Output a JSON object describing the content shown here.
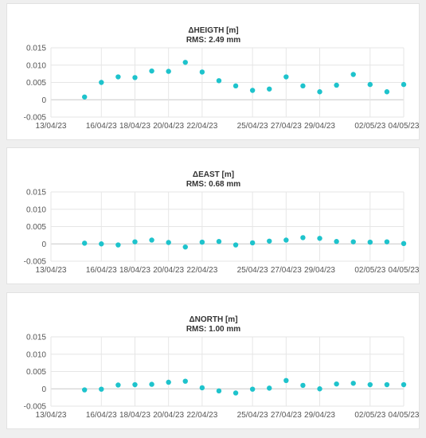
{
  "colors": {
    "point": "#1ec3cc",
    "grid": "#e6e6e6",
    "zero_line": "#c8c8c8",
    "text": "#333333"
  },
  "chart_data": [
    {
      "type": "scatter",
      "title": "ΔHEIGTH [m]",
      "subtitle": "RMS: 2.49 mm",
      "xlabel": "",
      "ylabel": "",
      "ylim": [
        -0.005,
        0.015
      ],
      "y_ticks": [
        "0.015",
        "0.010",
        "0.005",
        "0",
        "-0.005"
      ],
      "x_ticks": [
        "13/04/23",
        "16/04/23",
        "18/04/23",
        "20/04/23",
        "22/04/23",
        "25/04/23",
        "27/04/23",
        "29/04/23",
        "02/05/23",
        "04/05/23"
      ],
      "grid": true,
      "x": [
        "15/04/23",
        "16/04/23",
        "17/04/23",
        "18/04/23",
        "19/04/23",
        "20/04/23",
        "21/04/23",
        "22/04/23",
        "23/04/23",
        "24/04/23",
        "25/04/23",
        "26/04/23",
        "27/04/23",
        "28/04/23",
        "29/04/23",
        "30/04/23",
        "01/05/23",
        "02/05/23",
        "03/05/23",
        "04/05/23"
      ],
      "values": [
        0.0008,
        0.005,
        0.0066,
        0.0064,
        0.0083,
        0.0082,
        0.0108,
        0.008,
        0.0055,
        0.004,
        0.0027,
        0.0031,
        0.0066,
        0.004,
        0.0023,
        0.0042,
        0.0073,
        0.0044,
        0.0023,
        0.0044
      ]
    },
    {
      "type": "scatter",
      "title": "ΔEAST [m]",
      "subtitle": "RMS: 0.68 mm",
      "xlabel": "",
      "ylabel": "",
      "ylim": [
        -0.005,
        0.015
      ],
      "y_ticks": [
        "0.015",
        "0.010",
        "0.005",
        "0",
        "-0.005"
      ],
      "x_ticks": [
        "13/04/23",
        "16/04/23",
        "18/04/23",
        "20/04/23",
        "22/04/23",
        "25/04/23",
        "27/04/23",
        "29/04/23",
        "02/05/23",
        "04/05/23"
      ],
      "grid": true,
      "x": [
        "15/04/23",
        "16/04/23",
        "17/04/23",
        "18/04/23",
        "19/04/23",
        "20/04/23",
        "21/04/23",
        "22/04/23",
        "23/04/23",
        "24/04/23",
        "25/04/23",
        "26/04/23",
        "27/04/23",
        "28/04/23",
        "29/04/23",
        "30/04/23",
        "01/05/23",
        "02/05/23",
        "03/05/23",
        "04/05/23"
      ],
      "values": [
        0.0002,
        0.0,
        -0.0003,
        0.0006,
        0.0011,
        0.0004,
        -0.0009,
        0.0005,
        0.0007,
        -0.0003,
        0.0003,
        0.0008,
        0.0011,
        0.0018,
        0.0016,
        0.0007,
        0.0006,
        0.0005,
        0.0006,
        0.0001
      ]
    },
    {
      "type": "scatter",
      "title": "ΔNORTH [m]",
      "subtitle": "RMS: 1.00 mm",
      "xlabel": "",
      "ylabel": "",
      "ylim": [
        -0.005,
        0.015
      ],
      "y_ticks": [
        "0.015",
        "0.010",
        "0.005",
        "0",
        "-0.005"
      ],
      "x_ticks": [
        "13/04/23",
        "16/04/23",
        "18/04/23",
        "20/04/23",
        "22/04/23",
        "25/04/23",
        "27/04/23",
        "29/04/23",
        "02/05/23",
        "04/05/23"
      ],
      "grid": true,
      "x": [
        "15/04/23",
        "16/04/23",
        "17/04/23",
        "18/04/23",
        "19/04/23",
        "20/04/23",
        "21/04/23",
        "22/04/23",
        "23/04/23",
        "24/04/23",
        "25/04/23",
        "26/04/23",
        "27/04/23",
        "28/04/23",
        "29/04/23",
        "30/04/23",
        "01/05/23",
        "02/05/23",
        "03/05/23",
        "04/05/23"
      ],
      "values": [
        -0.0003,
        -0.0001,
        0.0011,
        0.0012,
        0.0013,
        0.0019,
        0.0022,
        0.0003,
        -0.0006,
        -0.0012,
        -0.0001,
        0.0002,
        0.0024,
        0.001,
        0.0,
        0.0014,
        0.0016,
        0.0012,
        0.0012,
        0.0012
      ]
    }
  ]
}
